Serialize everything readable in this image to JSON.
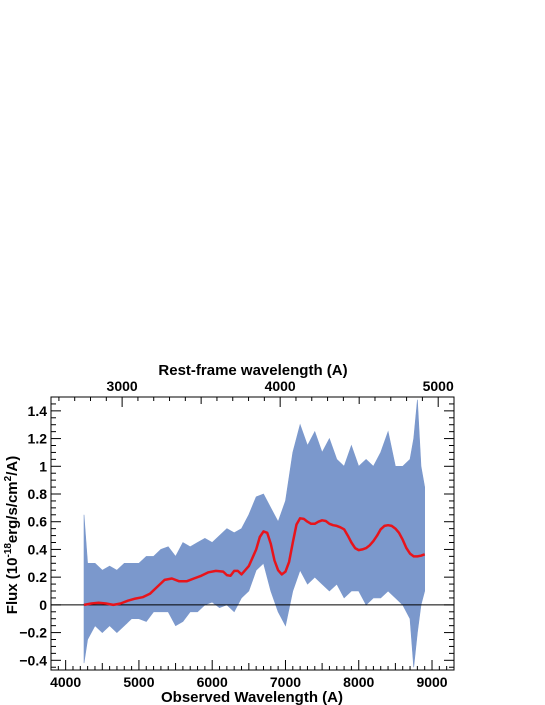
{
  "chart_data": {
    "type": "line",
    "xlabel": "Observed Wavelength (A)",
    "xlabel_top": "Rest-frame wavelength (A)",
    "ylabel_main": "Flux (10",
    "ylabel_exp1": "-18",
    "ylabel_mid": "erg/s/cm",
    "ylabel_exp2": "2",
    "ylabel_end": "/A)",
    "xlim": [
      3800,
      9300
    ],
    "ylim": [
      -0.47,
      1.5
    ],
    "top_axis_lim": [
      2550,
      5100
    ],
    "x_ticks": [
      4000,
      5000,
      6000,
      7000,
      8000,
      9000
    ],
    "x_tick_labels": [
      "4000",
      "5000",
      "6000",
      "7000",
      "8000",
      "9000"
    ],
    "y_ticks": [
      -0.4,
      -0.2,
      0,
      0.2,
      0.4,
      0.6,
      0.8,
      1,
      1.2,
      1.4
    ],
    "y_tick_labels": [
      "−0.4",
      "−0.2",
      "0",
      "0.2",
      "0.4",
      "0.6",
      "0.8",
      "1",
      "1.2",
      "1.4"
    ],
    "top_ticks": [
      3000,
      4000,
      5000
    ],
    "top_tick_labels": [
      "3000",
      "4000",
      "5000"
    ],
    "zero_line": 0,
    "grid": false,
    "series": [
      {
        "kind": "spectrum-envelope",
        "color": "#7b98cc",
        "x": [
          4250,
          4300,
          4400,
          4500,
          4600,
          4700,
          4800,
          4900,
          5000,
          5100,
          5200,
          5300,
          5400,
          5500,
          5600,
          5700,
          5800,
          5900,
          6000,
          6100,
          6200,
          6300,
          6400,
          6500,
          6600,
          6700,
          6800,
          6900,
          7000,
          7100,
          7200,
          7300,
          7400,
          7500,
          7600,
          7700,
          7800,
          7900,
          8000,
          8100,
          8200,
          8300,
          8400,
          8500,
          8600,
          8700,
          8750,
          8800,
          8850,
          8900
        ],
        "upper": [
          0.65,
          0.3,
          0.3,
          0.25,
          0.28,
          0.25,
          0.3,
          0.3,
          0.3,
          0.35,
          0.35,
          0.4,
          0.42,
          0.35,
          0.45,
          0.42,
          0.45,
          0.48,
          0.45,
          0.5,
          0.55,
          0.52,
          0.55,
          0.65,
          0.78,
          0.8,
          0.7,
          0.6,
          0.75,
          1.1,
          1.3,
          1.15,
          1.25,
          1.1,
          1.2,
          1.05,
          1.0,
          1.15,
          1.0,
          1.05,
          1.0,
          1.1,
          1.25,
          1.0,
          1.0,
          1.05,
          1.2,
          1.48,
          1.0,
          0.85
        ],
        "lower": [
          -0.42,
          -0.25,
          -0.15,
          -0.2,
          -0.15,
          -0.2,
          -0.15,
          -0.1,
          -0.1,
          -0.12,
          -0.05,
          -0.05,
          -0.05,
          -0.15,
          -0.12,
          -0.05,
          -0.05,
          0.0,
          0.02,
          -0.02,
          0.0,
          -0.05,
          0.05,
          0.1,
          0.25,
          0.3,
          0.1,
          -0.05,
          -0.15,
          0.1,
          0.25,
          0.15,
          0.2,
          0.15,
          0.1,
          0.15,
          0.05,
          0.1,
          0.1,
          0.0,
          0.05,
          0.05,
          0.1,
          0.05,
          0.0,
          -0.1,
          -0.45,
          -0.2,
          0.0,
          0.1
        ]
      },
      {
        "kind": "smoothed-fit",
        "color": "#e8141b",
        "x": [
          4250,
          4350,
          4450,
          4550,
          4650,
          4750,
          4850,
          4950,
          5050,
          5150,
          5250,
          5350,
          5450,
          5550,
          5650,
          5750,
          5850,
          5950,
          6050,
          6150,
          6200,
          6250,
          6300,
          6350,
          6400,
          6500,
          6600,
          6650,
          6700,
          6750,
          6800,
          6850,
          6900,
          6950,
          7000,
          7050,
          7100,
          7150,
          7200,
          7250,
          7300,
          7350,
          7400,
          7450,
          7500,
          7550,
          7600,
          7650,
          7700,
          7750,
          7800,
          7850,
          7900,
          7950,
          8000,
          8050,
          8100,
          8150,
          8200,
          8250,
          8300,
          8350,
          8400,
          8450,
          8500,
          8550,
          8600,
          8650,
          8700,
          8750,
          8800,
          8850,
          8900
        ],
        "y": [
          0.0,
          0.01,
          0.015,
          0.01,
          0.0,
          0.01,
          0.03,
          0.045,
          0.055,
          0.08,
          0.13,
          0.18,
          0.19,
          0.17,
          0.17,
          0.19,
          0.21,
          0.235,
          0.245,
          0.24,
          0.215,
          0.21,
          0.245,
          0.245,
          0.22,
          0.28,
          0.4,
          0.49,
          0.53,
          0.52,
          0.44,
          0.32,
          0.25,
          0.22,
          0.24,
          0.31,
          0.45,
          0.58,
          0.625,
          0.62,
          0.6,
          0.585,
          0.585,
          0.6,
          0.61,
          0.605,
          0.585,
          0.575,
          0.57,
          0.56,
          0.545,
          0.5,
          0.45,
          0.41,
          0.395,
          0.4,
          0.41,
          0.43,
          0.46,
          0.5,
          0.545,
          0.57,
          0.575,
          0.57,
          0.55,
          0.52,
          0.47,
          0.41,
          0.37,
          0.35,
          0.35,
          0.355,
          0.365
        ]
      }
    ]
  }
}
